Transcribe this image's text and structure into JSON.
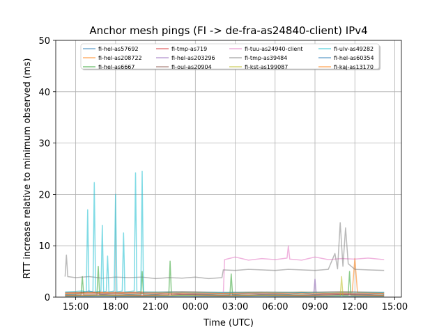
{
  "chart_data": {
    "type": "line",
    "title": "Anchor mesh pings (FI -> de-fra-as24840-client) IPv4",
    "xlabel": "Time (UTC)",
    "ylabel": "RTT increase relative to minimum observed (ms)",
    "ylim": [
      0,
      50
    ],
    "xlim": [
      13.5,
      39.5
    ],
    "grid": true,
    "legend_position": "top-center",
    "x_ticks": [
      {
        "value": 15,
        "label": "15:00"
      },
      {
        "value": 18,
        "label": "18:00"
      },
      {
        "value": 21,
        "label": "21:00"
      },
      {
        "value": 24,
        "label": "00:00"
      },
      {
        "value": 27,
        "label": "03:00"
      },
      {
        "value": 30,
        "label": "06:00"
      },
      {
        "value": 33,
        "label": "09:00"
      },
      {
        "value": 36,
        "label": "12:00"
      },
      {
        "value": 39,
        "label": "15:00"
      }
    ],
    "y_ticks": [
      0,
      10,
      20,
      30,
      40,
      50
    ],
    "series": [
      {
        "name": "fi-hel-as57692",
        "color": "#1f77b4",
        "x": [
          14.2,
          15,
          16,
          17,
          18,
          19,
          20,
          21,
          22,
          23,
          24,
          25,
          26,
          27,
          28,
          29,
          30,
          31,
          32,
          33,
          34,
          35,
          36,
          37,
          38,
          38.2
        ],
        "y": [
          0.5,
          0.6,
          1.2,
          0.5,
          0.8,
          0.5,
          0.7,
          0.5,
          0.9,
          0.5,
          0.6,
          0.5,
          0.7,
          0.5,
          0.8,
          0.5,
          0.6,
          0.5,
          0.9,
          0.5,
          0.7,
          0.5,
          0.6,
          0.5,
          0.8,
          0.5
        ]
      },
      {
        "name": "fi-hel-as208722",
        "color": "#ff7f0e",
        "x": [
          14.2,
          16,
          18,
          20,
          22,
          24,
          26,
          28,
          30,
          32,
          34,
          35.8,
          36,
          36.2,
          38.2
        ],
        "y": [
          0.8,
          0.9,
          0.8,
          1.0,
          0.8,
          0.9,
          0.8,
          0.9,
          0.8,
          1.0,
          0.8,
          0.9,
          7.5,
          0.9,
          0.8
        ]
      },
      {
        "name": "fi-hel-as6667",
        "color": "#2ca02c",
        "x": [
          14.2,
          15.4,
          15.5,
          15.6,
          16.6,
          16.7,
          16.8,
          19.9,
          20.0,
          20.1,
          22.0,
          22.1,
          22.2,
          26.6,
          26.7,
          26.8,
          35.5,
          35.6,
          35.7,
          38.2
        ],
        "y": [
          0.4,
          0.4,
          4.0,
          0.4,
          0.4,
          6.0,
          0.4,
          0.4,
          5.0,
          0.4,
          0.4,
          7.0,
          0.4,
          0.4,
          4.5,
          0.4,
          0.4,
          5.0,
          0.4,
          0.4
        ]
      },
      {
        "name": "fi-tmp-as719",
        "color": "#d62728",
        "x": [
          14.2,
          17,
          20,
          23,
          26,
          29,
          32,
          35,
          38.2
        ],
        "y": [
          0.3,
          0.4,
          0.3,
          0.5,
          0.3,
          0.4,
          0.3,
          0.5,
          0.3
        ]
      },
      {
        "name": "fi-hel-as203296",
        "color": "#9467bd",
        "x": [
          14.2,
          17,
          20,
          23,
          26,
          29,
          32,
          32.9,
          33.0,
          33.1,
          35,
          38.2
        ],
        "y": [
          0.6,
          0.7,
          0.6,
          0.8,
          0.6,
          0.7,
          0.6,
          0.6,
          3.5,
          0.6,
          0.7,
          0.6
        ]
      },
      {
        "name": "fi-oul-as20904",
        "color": "#8c564b",
        "x": [
          14.2,
          17,
          20,
          23,
          26,
          29,
          32,
          35,
          38.2
        ],
        "y": [
          0.9,
          1.0,
          0.9,
          1.1,
          0.9,
          1.0,
          0.9,
          1.1,
          0.9
        ]
      },
      {
        "name": "fi-tuu-as24940-client",
        "color": "#e377c2",
        "x": [
          26.1,
          26.2,
          27,
          28,
          29,
          30,
          30.9,
          31.0,
          31.1,
          32,
          33,
          34,
          35,
          36,
          37,
          38.2
        ],
        "y": [
          0.5,
          7.3,
          7.8,
          7.2,
          7.5,
          7.3,
          7.6,
          10.0,
          7.4,
          7.2,
          7.8,
          7.3,
          7.5,
          7.4,
          7.6,
          7.3
        ]
      },
      {
        "name": "fi-tmp-as39484",
        "color": "#7f7f7f",
        "x": [
          14.2,
          14.3,
          14.4,
          15,
          16,
          17,
          18,
          19,
          20,
          21,
          22,
          23,
          24,
          25,
          26,
          26.1,
          27,
          28,
          29,
          30,
          31,
          32,
          33,
          34,
          34.5,
          34.7,
          34.9,
          35.1,
          35.3,
          35.5,
          36,
          37,
          38.2
        ],
        "y": [
          4.0,
          8.2,
          4.0,
          3.8,
          4.0,
          3.7,
          3.9,
          3.8,
          3.9,
          3.6,
          3.8,
          3.7,
          3.9,
          3.6,
          3.8,
          5.3,
          5.2,
          5.4,
          5.3,
          5.2,
          5.4,
          5.3,
          5.2,
          5.4,
          8.5,
          5.5,
          14.5,
          6.0,
          13.5,
          6.5,
          5.4,
          5.3,
          5.2
        ]
      },
      {
        "name": "fi-kst-as199087",
        "color": "#bcbd22",
        "x": [
          14.2,
          17,
          20,
          23,
          26,
          29,
          32,
          34.9,
          35.0,
          35.1,
          38.2
        ],
        "y": [
          0.2,
          0.3,
          0.2,
          0.3,
          0.2,
          0.3,
          0.2,
          0.2,
          4.0,
          0.2,
          0.2
        ]
      },
      {
        "name": "fi-ulv-as49282",
        "color": "#17becf",
        "x": [
          14.2,
          15.5,
          15.8,
          15.9,
          16.0,
          16.3,
          16.4,
          16.5,
          16.9,
          17.0,
          17.1,
          17.3,
          17.4,
          17.5,
          17.9,
          18.0,
          18.1,
          18.5,
          18.6,
          18.7,
          19.4,
          19.5,
          19.6,
          19.9,
          20.0,
          20.1,
          20.4,
          24,
          28,
          32,
          36,
          38.2
        ],
        "y": [
          1.0,
          1.2,
          1.0,
          17.0,
          1.0,
          1.2,
          22.3,
          1.0,
          1.2,
          14.0,
          1.0,
          1.2,
          8.0,
          1.0,
          1.2,
          20.0,
          1.0,
          1.2,
          12.5,
          1.0,
          1.2,
          24.2,
          1.0,
          1.2,
          24.5,
          1.0,
          1.0,
          0.9,
          0.9,
          0.9,
          0.9,
          0.9
        ]
      },
      {
        "name": "fi-hel-as60354",
        "color": "#1f77b4",
        "x": [
          14.2,
          17,
          20,
          23,
          26,
          29,
          32,
          35,
          38.2
        ],
        "y": [
          0.1,
          0.2,
          0.1,
          0.2,
          0.1,
          0.2,
          0.1,
          0.2,
          0.1
        ]
      },
      {
        "name": "fi-kaj-as13170",
        "color": "#ff7f0e",
        "x": [
          14.2,
          17,
          20,
          23,
          26,
          29,
          32,
          35,
          38.2
        ],
        "y": [
          0.7,
          0.8,
          0.7,
          0.8,
          0.7,
          0.8,
          0.7,
          0.8,
          0.7
        ]
      }
    ]
  }
}
